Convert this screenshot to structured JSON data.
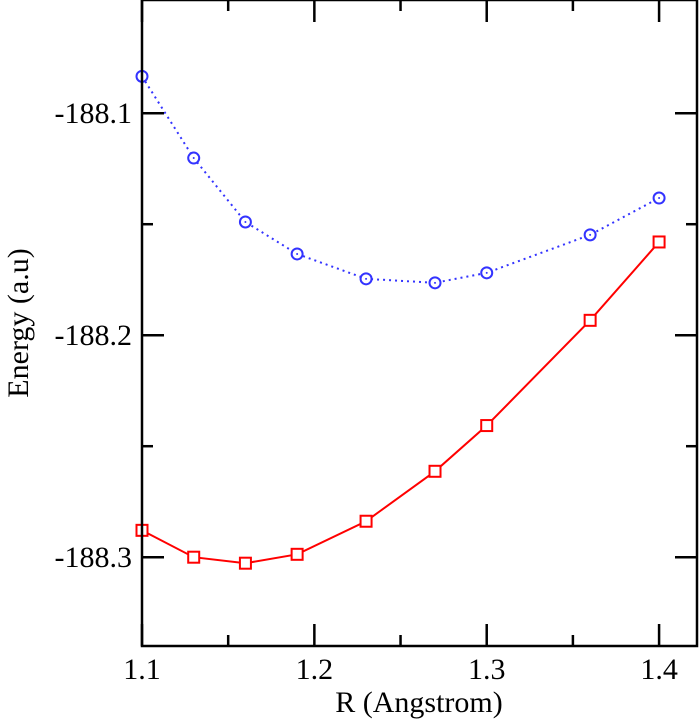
{
  "chart_data": {
    "type": "line",
    "title": "",
    "xlabel": "R (Angstrom)",
    "ylabel": "Energy (a.u)",
    "xlim": [
      1.1,
      1.422
    ],
    "ylim": [
      -188.34,
      -188.049
    ],
    "xticks": [
      1.1,
      1.2,
      1.3,
      1.4
    ],
    "xtick_labels": [
      "1.1",
      "1.2",
      "1.3",
      "1.4"
    ],
    "xminor": [
      1.15,
      1.25,
      1.35
    ],
    "yticks": [
      -188.1,
      -188.2,
      -188.3
    ],
    "ytick_labels": [
      "-188.1",
      "-188.2",
      "-188.3"
    ],
    "yminor": [
      -188.15,
      -188.25
    ],
    "grid": false,
    "x": [
      1.1,
      1.13,
      1.16,
      1.19,
      1.23,
      1.27,
      1.3,
      1.36,
      1.4
    ],
    "series": [
      {
        "color": "#3333ff",
        "line_style": "dotted",
        "marker": "circle",
        "values": [
          -188.0834,
          -188.1202,
          -188.149,
          -188.1634,
          -188.1746,
          -188.1764,
          -188.1719,
          -188.1548,
          -188.1382
        ]
      },
      {
        "color": "#ff0000",
        "line_style": "solid",
        "marker": "square",
        "values": [
          -188.2879,
          -188.3,
          -188.3027,
          -188.2987,
          -188.2838,
          -188.2613,
          -188.2407,
          -188.1933,
          -188.158
        ]
      }
    ]
  }
}
